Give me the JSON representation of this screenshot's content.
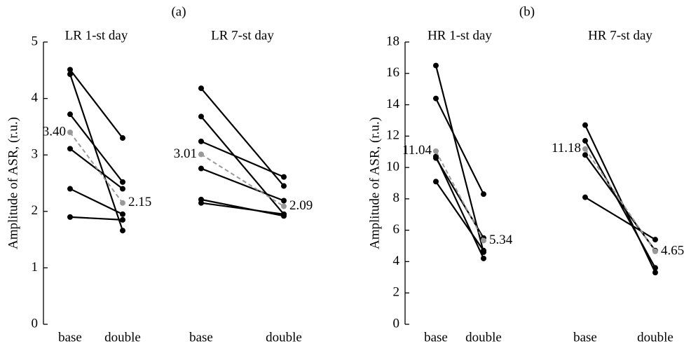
{
  "chart_data": [
    {
      "type": "line",
      "title": "(a)",
      "ylabel": "Amplitude of ASR, (r.u.)",
      "ylim": [
        0,
        5
      ],
      "yticks": [
        0,
        1,
        2,
        3,
        4,
        5
      ],
      "groups": [
        {
          "title": "LR 1-st day",
          "categories": [
            "base",
            "double"
          ],
          "series": [
            {
              "color": "#000000",
              "values": [
                4.51,
                3.3
              ]
            },
            {
              "color": "#000000",
              "values": [
                4.43,
                1.66
              ]
            },
            {
              "color": "#000000",
              "values": [
                3.72,
                2.52
              ]
            },
            {
              "color": "#000000",
              "values": [
                3.11,
                2.4
              ]
            },
            {
              "color": "#000000",
              "values": [
                2.4,
                1.95
              ]
            },
            {
              "color": "#000000",
              "values": [
                1.9,
                1.85
              ]
            },
            {
              "color": "#999999",
              "dashed": true,
              "values": [
                3.4,
                2.15
              ],
              "value_labels": [
                "3.40",
                "2.15"
              ]
            }
          ]
        },
        {
          "title": "LR 7-st day",
          "categories": [
            "base",
            "double"
          ],
          "series": [
            {
              "color": "#000000",
              "values": [
                4.18,
                2.45
              ]
            },
            {
              "color": "#000000",
              "values": [
                3.68,
                1.95
              ]
            },
            {
              "color": "#000000",
              "values": [
                3.24,
                2.61
              ]
            },
            {
              "color": "#000000",
              "values": [
                2.76,
                2.19
              ]
            },
            {
              "color": "#000000",
              "values": [
                2.21,
                1.92
              ]
            },
            {
              "color": "#000000",
              "values": [
                2.15,
                1.95
              ]
            },
            {
              "color": "#999999",
              "dashed": true,
              "values": [
                3.01,
                2.09
              ],
              "value_labels": [
                "3.01",
                "2.09"
              ]
            }
          ]
        }
      ]
    },
    {
      "type": "line",
      "title": "(b)",
      "ylabel": "Amplitude of ASR, (r.u.)",
      "ylim": [
        0,
        18
      ],
      "yticks": [
        0,
        2,
        4,
        6,
        8,
        10,
        12,
        14,
        16,
        18
      ],
      "groups": [
        {
          "title": "HR 1-st day",
          "categories": [
            "base",
            "double"
          ],
          "series": [
            {
              "color": "#000000",
              "values": [
                16.5,
                4.6
              ]
            },
            {
              "color": "#000000",
              "values": [
                14.4,
                8.3
              ]
            },
            {
              "color": "#000000",
              "values": [
                10.7,
                4.2
              ]
            },
            {
              "color": "#000000",
              "values": [
                10.6,
                5.5
              ]
            },
            {
              "color": "#000000",
              "values": [
                9.1,
                4.7
              ]
            },
            {
              "color": "#999999",
              "dashed": true,
              "values": [
                11.04,
                5.34
              ],
              "value_labels": [
                "11.04",
                "5.34"
              ]
            }
          ]
        },
        {
          "title": "HR 7-st day",
          "categories": [
            "base",
            "double"
          ],
          "series": [
            {
              "color": "#000000",
              "values": [
                12.7,
                3.3
              ]
            },
            {
              "color": "#000000",
              "values": [
                11.7,
                3.6
              ]
            },
            {
              "color": "#000000",
              "values": [
                10.8,
                4.7
              ]
            },
            {
              "color": "#000000",
              "values": [
                8.1,
                5.4
              ]
            },
            {
              "color": "#999999",
              "dashed": true,
              "values": [
                11.18,
                4.65
              ],
              "value_labels": [
                "11.18",
                "4.65"
              ]
            }
          ]
        }
      ]
    }
  ]
}
